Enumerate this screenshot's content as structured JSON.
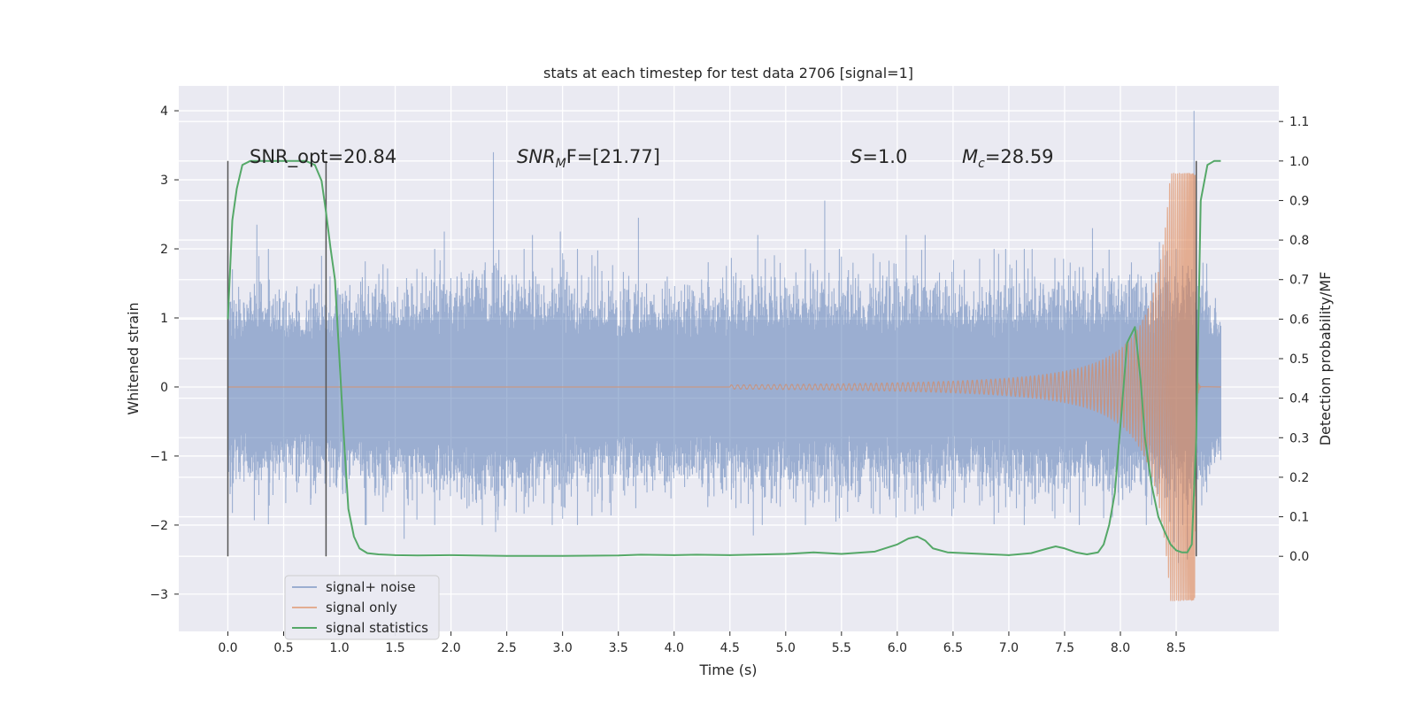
{
  "chart_data": {
    "type": "line",
    "title": "stats at each timestep for test data 2706 [signal=1]",
    "xlabel": "Time (s)",
    "ylabel": "Whitened strain",
    "ylabel_right": "Detection probability/MF",
    "xlim": [
      -0.44,
      9.42
    ],
    "ylim": [
      -3.54,
      4.36
    ],
    "ylim_right": [
      -0.19,
      1.19
    ],
    "grid": true,
    "legend_position": "lower-left",
    "x_ticks": [
      "0.0",
      "0.5",
      "1.0",
      "1.5",
      "2.0",
      "2.5",
      "3.0",
      "3.5",
      "4.0",
      "4.5",
      "5.0",
      "5.5",
      "6.0",
      "6.5",
      "7.0",
      "7.5",
      "8.0",
      "8.5"
    ],
    "x_tick_values": [
      0,
      0.5,
      1,
      1.5,
      2,
      2.5,
      3,
      3.5,
      4,
      4.5,
      5,
      5.5,
      6,
      6.5,
      7,
      7.5,
      8,
      8.5
    ],
    "y_ticks": [
      "−3",
      "−2",
      "−1",
      "0",
      "1",
      "2",
      "3",
      "4"
    ],
    "y_tick_values": [
      -3,
      -2,
      -1,
      0,
      1,
      2,
      3,
      4
    ],
    "y_right_ticks": [
      "0.0",
      "0.1",
      "0.2",
      "0.3",
      "0.4",
      "0.5",
      "0.6",
      "0.7",
      "0.8",
      "0.9",
      "1.0",
      "1.1"
    ],
    "y_right_tick_values": [
      0,
      0.1,
      0.2,
      0.3,
      0.4,
      0.5,
      0.6,
      0.7,
      0.8,
      0.9,
      1.0,
      1.1
    ],
    "annotations": {
      "snr_opt": "SNR_opt=20.84",
      "snr_mf_base": "SNR",
      "snr_mf_sub": "M",
      "snr_mf_rest": "F=[21.77]",
      "s_base": "S",
      "s_rest": "=1.0",
      "mc_base": "M",
      "mc_sub": "c",
      "mc_rest": "=28.59"
    },
    "vertical_markers": [
      0.0,
      0.88,
      8.68
    ],
    "series": [
      {
        "name": "signal+ noise",
        "color": "#4c72b0",
        "duration": 8.9,
        "envelope": [
          [
            0,
            1.0
          ],
          [
            0.3,
            1.0
          ],
          [
            0.9,
            0.95
          ],
          [
            1.5,
            1.05
          ],
          [
            2.4,
            1.2
          ],
          [
            3.5,
            1.0
          ],
          [
            4.5,
            1.05
          ],
          [
            5.5,
            1.1
          ],
          [
            6.5,
            1.05
          ],
          [
            7.5,
            1.1
          ],
          [
            8.3,
            1.1
          ],
          [
            8.6,
            1.2
          ],
          [
            8.9,
            0.85
          ]
        ],
        "spikes": [
          [
            0.0,
            1.9
          ],
          [
            0.02,
            -1.55
          ],
          [
            0.26,
            2.35
          ],
          [
            0.84,
            1.9
          ],
          [
            0.87,
            -1.4
          ],
          [
            1.24,
            -2.0
          ],
          [
            1.58,
            -2.2
          ],
          [
            1.94,
            2.25
          ],
          [
            2.38,
            3.4
          ],
          [
            2.4,
            -2.1
          ],
          [
            2.73,
            2.2
          ],
          [
            2.98,
            2.25
          ],
          [
            3.68,
            2.45
          ],
          [
            4.71,
            -2.15
          ],
          [
            4.75,
            2.2
          ],
          [
            4.79,
            -2.0
          ],
          [
            5.35,
            2.7
          ],
          [
            5.45,
            -1.95
          ],
          [
            6.08,
            2.2
          ],
          [
            6.25,
            2.2
          ],
          [
            7.75,
            2.3
          ],
          [
            7.85,
            -1.9
          ],
          [
            8.35,
            2.1
          ],
          [
            8.48,
            -2.25
          ],
          [
            8.52,
            -2.55
          ],
          [
            8.6,
            -2.5
          ],
          [
            8.66,
            4.0
          ],
          [
            8.68,
            -2.0
          ],
          [
            8.74,
            1.8
          ]
        ]
      },
      {
        "name": "signal only",
        "color": "#dd8452",
        "chirp": {
          "t_merge": 8.67,
          "t_start": 4.5,
          "f_start": 18,
          "f_merge": 120,
          "amp_start": 0.03,
          "amp_peak": 3.1,
          "ringdown_end": 8.72
        },
        "min_value": -3.2,
        "max_value": 3.1
      },
      {
        "name": "signal statistics",
        "color": "#55a868",
        "axis": "right",
        "x": [
          0.0,
          0.04,
          0.08,
          0.13,
          0.2,
          0.3,
          0.4,
          0.5,
          0.6,
          0.7,
          0.78,
          0.84,
          0.88,
          0.92,
          0.96,
          1.0,
          1.04,
          1.08,
          1.13,
          1.18,
          1.25,
          1.35,
          1.5,
          1.7,
          2.0,
          2.2,
          2.5,
          3.0,
          3.5,
          3.7,
          4.0,
          4.2,
          4.5,
          5.0,
          5.25,
          5.5,
          5.8,
          6.0,
          6.1,
          6.18,
          6.25,
          6.32,
          6.45,
          6.6,
          7.0,
          7.2,
          7.35,
          7.42,
          7.5,
          7.6,
          7.7,
          7.8,
          7.85,
          7.9,
          7.95,
          8.0,
          8.06,
          8.13,
          8.18,
          8.22,
          8.28,
          8.34,
          8.4,
          8.45,
          8.5,
          8.55,
          8.6,
          8.64,
          8.68,
          8.72,
          8.78,
          8.84,
          8.9
        ],
        "y": [
          0.6,
          0.85,
          0.93,
          0.99,
          1.0,
          1.0,
          1.0,
          1.0,
          1.0,
          1.0,
          0.99,
          0.95,
          0.87,
          0.78,
          0.7,
          0.5,
          0.3,
          0.12,
          0.05,
          0.02,
          0.008,
          0.005,
          0.003,
          0.002,
          0.003,
          0.002,
          0.001,
          0.001,
          0.002,
          0.004,
          0.003,
          0.004,
          0.003,
          0.006,
          0.01,
          0.006,
          0.012,
          0.03,
          0.045,
          0.05,
          0.04,
          0.02,
          0.01,
          0.008,
          0.003,
          0.008,
          0.02,
          0.025,
          0.02,
          0.01,
          0.005,
          0.01,
          0.03,
          0.08,
          0.16,
          0.33,
          0.54,
          0.58,
          0.45,
          0.3,
          0.18,
          0.1,
          0.06,
          0.03,
          0.015,
          0.01,
          0.01,
          0.03,
          0.3,
          0.9,
          0.99,
          1.0,
          1.0
        ]
      }
    ]
  }
}
